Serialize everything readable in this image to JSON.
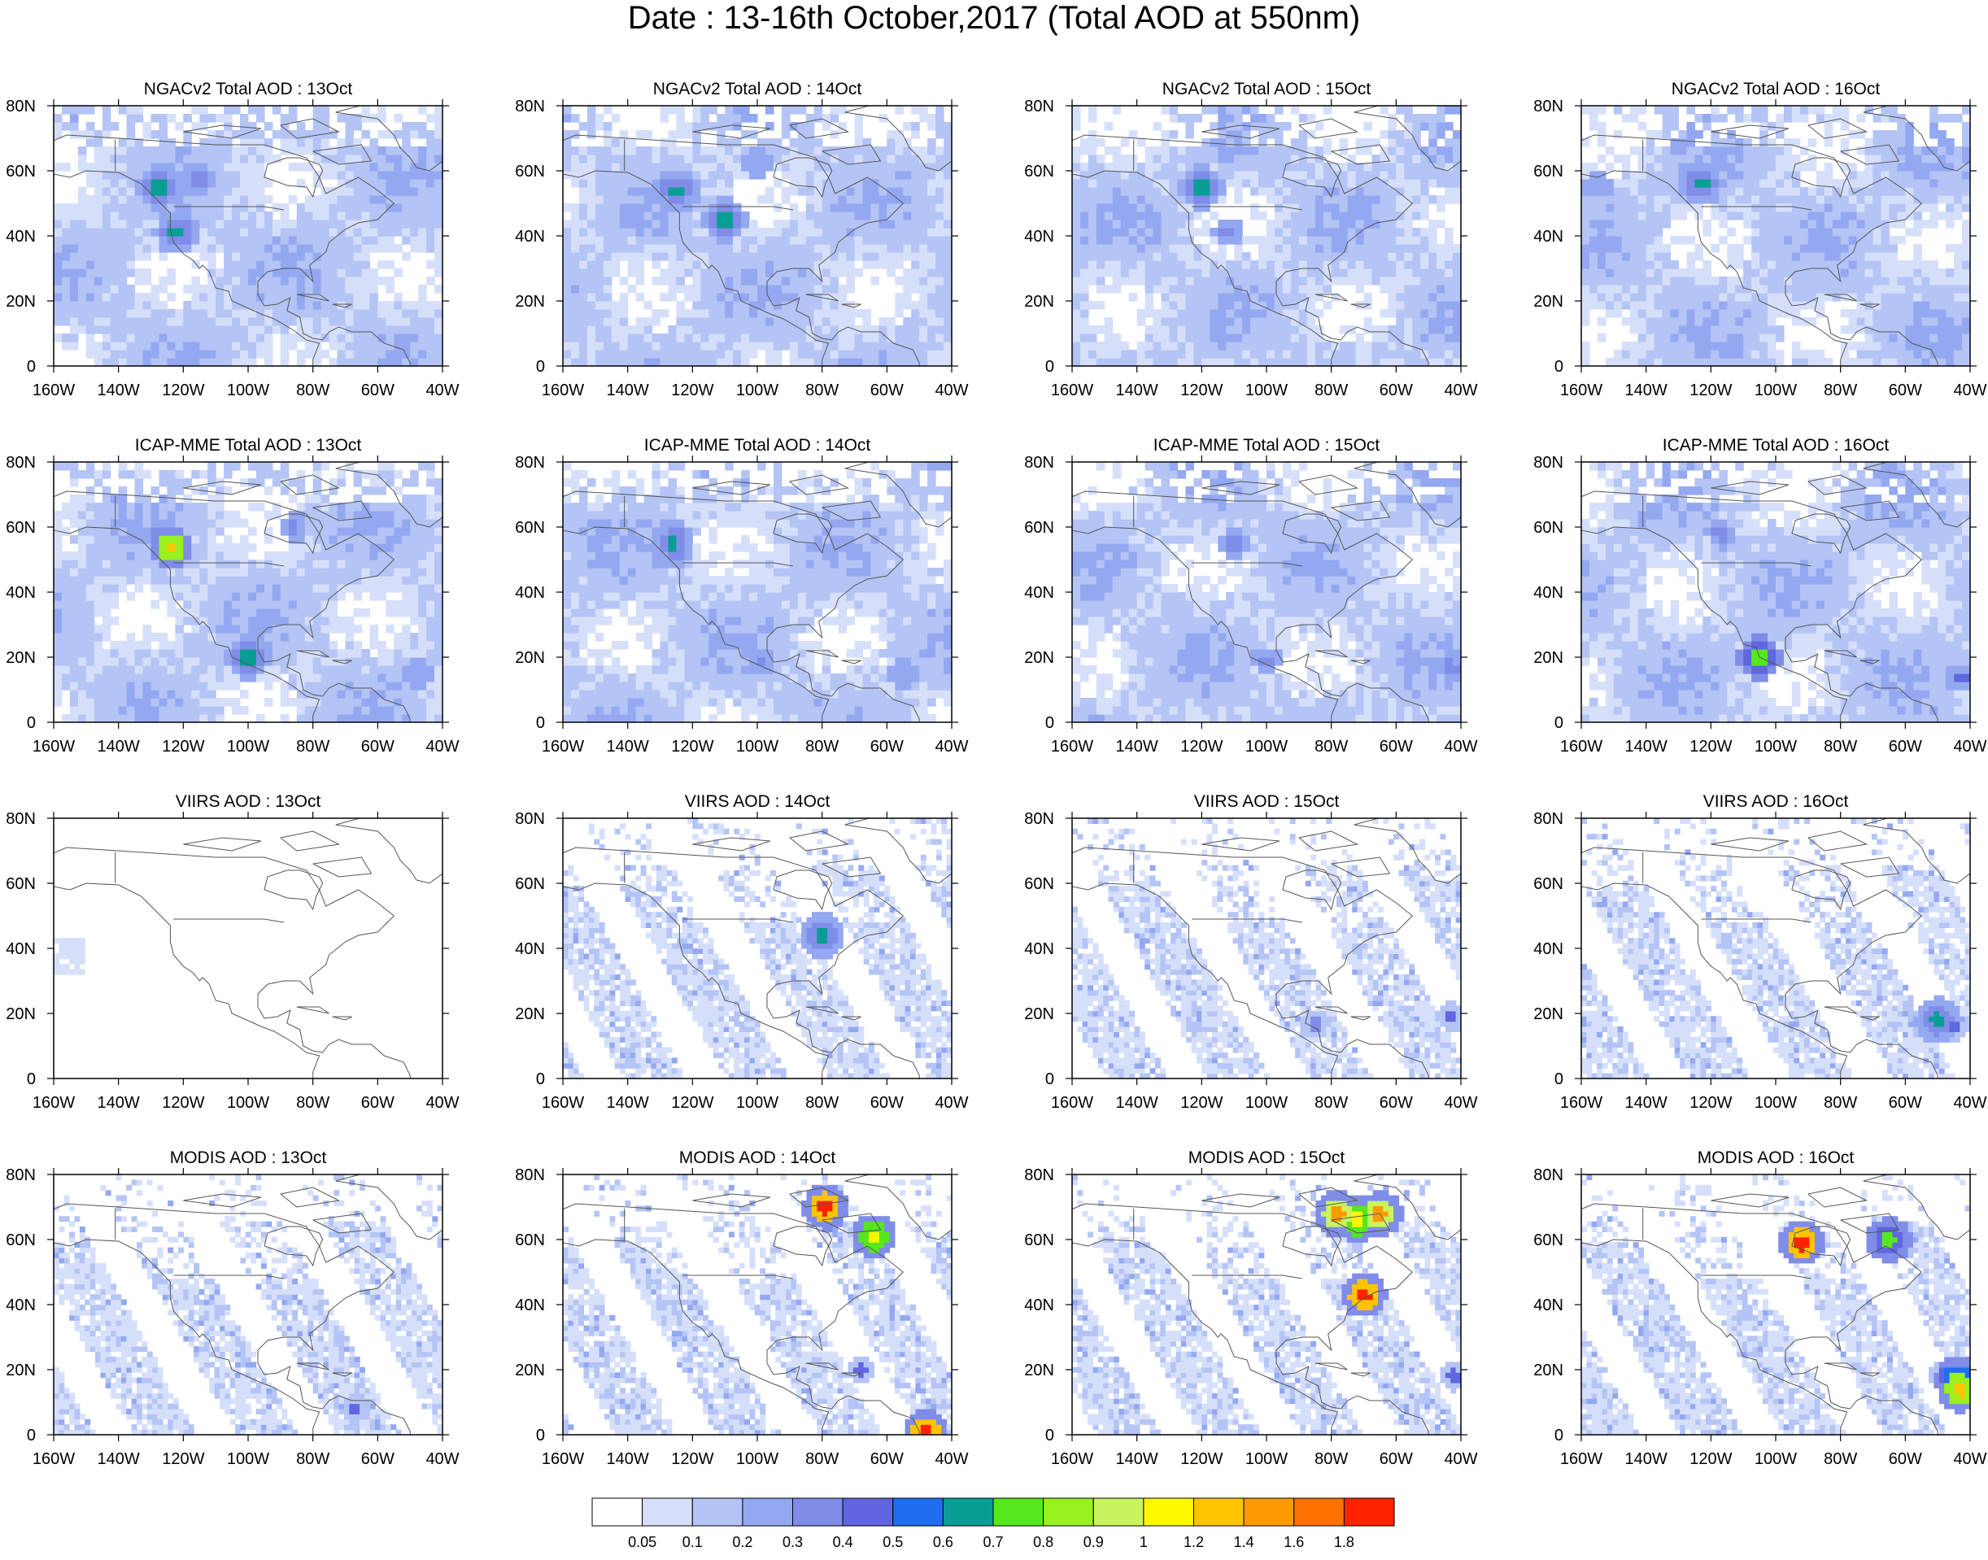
{
  "title": "Date : 13-16th October,2017 (Total AOD at 550nm)",
  "axes": {
    "x_tick_labels": [
      "160W",
      "140W",
      "120W",
      "100W",
      "80W",
      "60W",
      "40W"
    ],
    "y_tick_labels": [
      "0",
      "20N",
      "40N",
      "60N",
      "80N"
    ],
    "lon_range": [
      -160,
      -40
    ],
    "lat_range": [
      0,
      80
    ]
  },
  "panels": [
    {
      "title": "NGACv2 Total AOD : 13Oct",
      "dataset": "NGACv2",
      "date": "13Oct",
      "base_level": 2,
      "coverage": "full",
      "hotspots": [
        {
          "lon": -127,
          "lat": 55,
          "level": 7
        },
        {
          "lon": -122,
          "lat": 41,
          "level": 7
        },
        {
          "lon": -115,
          "lat": 58,
          "level": 4
        }
      ]
    },
    {
      "title": "NGACv2 Total AOD : 14Oct",
      "dataset": "NGACv2",
      "date": "14Oct",
      "base_level": 2,
      "coverage": "full",
      "hotspots": [
        {
          "lon": -125,
          "lat": 54,
          "level": 7
        },
        {
          "lon": -110,
          "lat": 45,
          "level": 7
        },
        {
          "lon": -100,
          "lat": 62,
          "level": 3
        }
      ]
    },
    {
      "title": "NGACv2 Total AOD : 15Oct",
      "dataset": "NGACv2",
      "date": "15Oct",
      "base_level": 2,
      "coverage": "full",
      "hotspots": [
        {
          "lon": -120,
          "lat": 55,
          "level": 7
        },
        {
          "lon": -112,
          "lat": 41,
          "level": 4
        }
      ]
    },
    {
      "title": "NGACv2 Total AOD : 16Oct",
      "dataset": "NGACv2",
      "date": "16Oct",
      "base_level": 2,
      "coverage": "full",
      "hotspots": [
        {
          "lon": -123,
          "lat": 56,
          "level": 7
        },
        {
          "lon": -155,
          "lat": 56,
          "level": 3
        }
      ]
    },
    {
      "title": "ICAP-MME Total AOD : 13Oct",
      "dataset": "ICAP-MME",
      "date": "13Oct",
      "base_level": 2,
      "coverage": "full",
      "hotspots": [
        {
          "lon": -124,
          "lat": 54,
          "level": 12
        },
        {
          "lon": -86,
          "lat": 60,
          "level": 4
        },
        {
          "lon": -100,
          "lat": 20,
          "level": 7
        },
        {
          "lon": -47,
          "lat": 15,
          "level": 3
        }
      ]
    },
    {
      "title": "ICAP-MME Total AOD : 14Oct",
      "dataset": "ICAP-MME",
      "date": "14Oct",
      "base_level": 2,
      "coverage": "full",
      "hotspots": [
        {
          "lon": -126,
          "lat": 55,
          "level": 7
        },
        {
          "lon": -99,
          "lat": 19,
          "level": 4
        },
        {
          "lon": -55,
          "lat": 15,
          "level": 3
        }
      ]
    },
    {
      "title": "ICAP-MME Total AOD : 15Oct",
      "dataset": "ICAP-MME",
      "date": "15Oct",
      "base_level": 2,
      "coverage": "full",
      "hotspots": [
        {
          "lon": -110,
          "lat": 55,
          "level": 4
        },
        {
          "lon": -100,
          "lat": 19,
          "level": 4
        },
        {
          "lon": -43,
          "lat": 17,
          "level": 4
        }
      ]
    },
    {
      "title": "ICAP-MME Total AOD : 16Oct",
      "dataset": "ICAP-MME",
      "date": "16Oct",
      "base_level": 2,
      "coverage": "full",
      "hotspots": [
        {
          "lon": -105,
          "lat": 20,
          "level": 8
        },
        {
          "lon": -43,
          "lat": 14,
          "level": 5
        },
        {
          "lon": -117,
          "lat": 58,
          "level": 4
        }
      ]
    },
    {
      "title": "VIIRS AOD : 13Oct",
      "dataset": "VIIRS",
      "date": "13Oct",
      "base_level": 1,
      "coverage": "sparse-west",
      "hotspots": []
    },
    {
      "title": "VIIRS AOD : 14Oct",
      "dataset": "VIIRS",
      "date": "14Oct",
      "base_level": 1,
      "coverage": "swaths",
      "hotspots": [
        {
          "lon": -80,
          "lat": 44,
          "level": 7
        }
      ]
    },
    {
      "title": "VIIRS AOD : 15Oct",
      "dataset": "VIIRS",
      "date": "15Oct",
      "base_level": 1,
      "coverage": "swaths",
      "hotspots": [
        {
          "lon": -43,
          "lat": 19,
          "level": 5
        },
        {
          "lon": -85,
          "lat": 17,
          "level": 4
        }
      ]
    },
    {
      "title": "VIIRS AOD : 16Oct",
      "dataset": "VIIRS",
      "date": "16Oct",
      "base_level": 1,
      "coverage": "swaths",
      "hotspots": [
        {
          "lon": -50,
          "lat": 18,
          "level": 7
        },
        {
          "lon": -45,
          "lat": 16,
          "level": 5
        }
      ]
    },
    {
      "title": "MODIS AOD : 13Oct",
      "dataset": "MODIS",
      "date": "13Oct",
      "base_level": 1,
      "coverage": "swaths",
      "hotspots": [
        {
          "lon": -67,
          "lat": 8,
          "level": 5
        }
      ]
    },
    {
      "title": "MODIS AOD : 14Oct",
      "dataset": "MODIS",
      "date": "14Oct",
      "base_level": 1,
      "coverage": "swaths",
      "hotspots": [
        {
          "lon": -79,
          "lat": 70,
          "level": 15
        },
        {
          "lon": -64,
          "lat": 61,
          "level": 11
        },
        {
          "lon": -48,
          "lat": 1,
          "level": 15
        },
        {
          "lon": -68,
          "lat": 20,
          "level": 5
        }
      ]
    },
    {
      "title": "MODIS AOD : 15Oct",
      "dataset": "MODIS",
      "date": "15Oct",
      "base_level": 1,
      "coverage": "swaths",
      "hotspots": [
        {
          "lon": -70,
          "lat": 43,
          "level": 15
        },
        {
          "lon": -78,
          "lat": 68,
          "level": 13
        },
        {
          "lon": -72,
          "lat": 66,
          "level": 11
        },
        {
          "lon": -65,
          "lat": 68,
          "level": 13
        },
        {
          "lon": -42,
          "lat": 18,
          "level": 5
        }
      ]
    },
    {
      "title": "MODIS AOD : 16Oct",
      "dataset": "MODIS",
      "date": "16Oct",
      "base_level": 1,
      "coverage": "swaths",
      "hotspots": [
        {
          "lon": -44,
          "lat": 17,
          "level": 9
        },
        {
          "lon": -43,
          "lat": 14,
          "level": 12
        },
        {
          "lon": -48,
          "lat": 18,
          "level": 5
        },
        {
          "lon": -65,
          "lat": 60,
          "level": 8
        },
        {
          "lon": -92,
          "lat": 59,
          "level": 15
        }
      ]
    }
  ],
  "colorbar": {
    "labels": [
      "0.05",
      "0.1",
      "0.2",
      "0.3",
      "0.4",
      "0.5",
      "0.6",
      "0.7",
      "0.8",
      "0.9",
      "1",
      "1.2",
      "1.4",
      "1.6",
      "1.8"
    ],
    "colors": [
      "#ffffff",
      "#d6dffa",
      "#b4c4f5",
      "#93a8f1",
      "#7f8de8",
      "#5f66e0",
      "#1f6ef2",
      "#089e94",
      "#55e81d",
      "#98f01e",
      "#c8f45d",
      "#fff700",
      "#ffc400",
      "#ff9a00",
      "#ff7100",
      "#ff2200"
    ]
  }
}
